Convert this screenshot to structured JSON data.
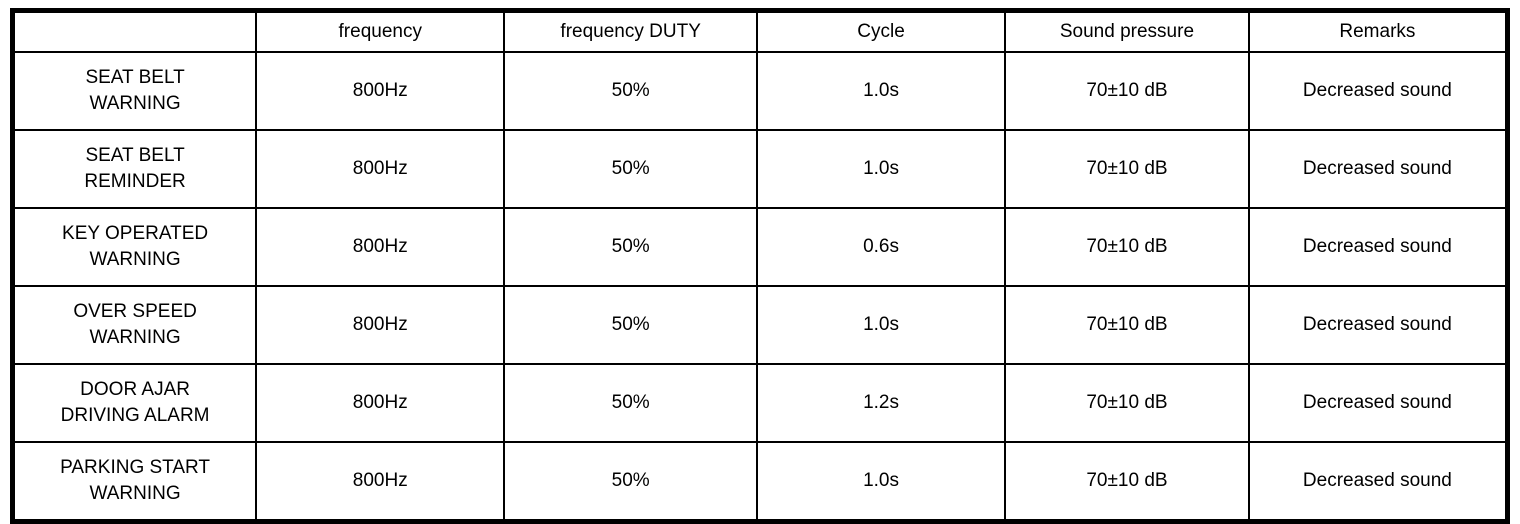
{
  "table": {
    "columns": {
      "blank": "",
      "frequency": "frequency",
      "duty": "frequency DUTY",
      "cycle": "Cycle",
      "sound_pressure": "Sound pressure",
      "remarks": "Remarks"
    },
    "rows": [
      {
        "label": "SEAT BELT\nWARNING",
        "frequency": "800Hz",
        "duty": "50%",
        "cycle": "1.0s",
        "sound_pressure": "70±10 dB",
        "remarks": "Decreased sound"
      },
      {
        "label": "SEAT BELT\nREMINDER",
        "frequency": "800Hz",
        "duty": "50%",
        "cycle": "1.0s",
        "sound_pressure": "70±10 dB",
        "remarks": "Decreased sound"
      },
      {
        "label": "KEY OPERATED\nWARNING",
        "frequency": "800Hz",
        "duty": "50%",
        "cycle": "0.6s",
        "sound_pressure": "70±10 dB",
        "remarks": "Decreased sound"
      },
      {
        "label": "OVER SPEED\nWARNING",
        "frequency": "800Hz",
        "duty": "50%",
        "cycle": "1.0s",
        "sound_pressure": "70±10 dB",
        "remarks": "Decreased sound"
      },
      {
        "label": "DOOR AJAR\nDRIVING ALARM",
        "frequency": "800Hz",
        "duty": "50%",
        "cycle": "1.2s",
        "sound_pressure": "70±10 dB",
        "remarks": "Decreased sound"
      },
      {
        "label": "PARKING START\nWARNING",
        "frequency": "800Hz",
        "duty": "50%",
        "cycle": "1.0s",
        "sound_pressure": "70±10 dB",
        "remarks": "Decreased sound"
      }
    ]
  }
}
